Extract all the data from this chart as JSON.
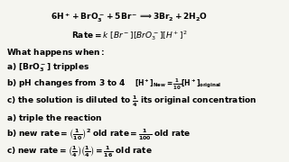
{
  "bg_color": "#f5f5f0",
  "text_color": "#000000",
  "figsize": [
    3.2,
    1.8
  ],
  "dpi": 100
}
